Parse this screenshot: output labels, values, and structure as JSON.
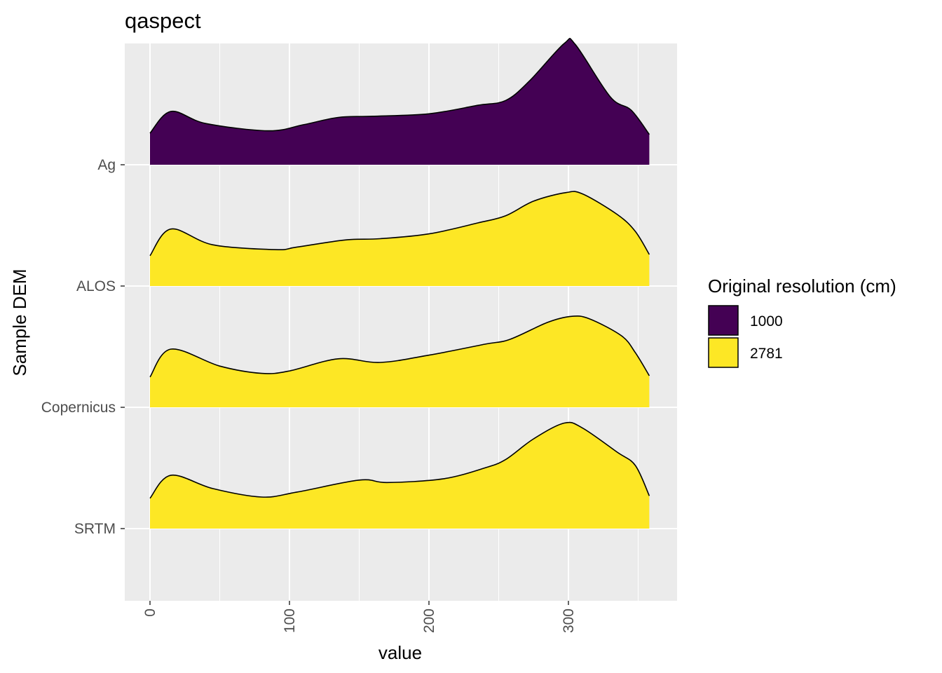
{
  "chart_data": {
    "type": "ridgeline density",
    "title": "qaspect",
    "xlabel": "value",
    "ylabel": "Sample DEM",
    "xlim": [
      -17,
      360
    ],
    "x_ticks": [
      0,
      100,
      200,
      300
    ],
    "x_tick_labels": [
      "0",
      "100",
      "200",
      "300"
    ],
    "x_tick_label_rotation": "vertical",
    "categories": [
      "Ag",
      "ALOS",
      "Copernicus",
      "SRTM"
    ],
    "legend": {
      "title": "Original resolution (cm)",
      "position": "right",
      "entries": [
        {
          "label": "1000",
          "color": "#440154"
        },
        {
          "label": "2781",
          "color": "#FDE725"
        }
      ]
    },
    "grid": true,
    "panel_background": "#EBEBEB",
    "series": [
      {
        "category": "Ag",
        "group": "1000",
        "color": "#440154",
        "x": [
          0,
          15,
          40,
          85,
          110,
          135,
          160,
          200,
          235,
          255,
          272,
          297,
          305,
          330,
          345,
          358
        ],
        "density": [
          0.26,
          0.44,
          0.34,
          0.28,
          0.33,
          0.39,
          0.4,
          0.42,
          0.49,
          0.53,
          0.69,
          1.0,
          0.99,
          0.56,
          0.45,
          0.25
        ]
      },
      {
        "category": "ALOS",
        "group": "2781",
        "color": "#FDE725",
        "x": [
          0,
          15,
          45,
          90,
          105,
          140,
          165,
          200,
          235,
          255,
          275,
          298,
          310,
          335,
          348,
          358
        ],
        "density": [
          0.25,
          0.47,
          0.34,
          0.3,
          0.32,
          0.38,
          0.39,
          0.43,
          0.52,
          0.58,
          0.7,
          0.77,
          0.76,
          0.59,
          0.45,
          0.26
        ]
      },
      {
        "category": "Copernicus",
        "group": "2781",
        "color": "#FDE725",
        "x": [
          0,
          15,
          50,
          80,
          100,
          135,
          165,
          200,
          240,
          258,
          285,
          302,
          315,
          338,
          348,
          358
        ],
        "density": [
          0.25,
          0.48,
          0.34,
          0.28,
          0.3,
          0.4,
          0.37,
          0.43,
          0.52,
          0.56,
          0.7,
          0.75,
          0.73,
          0.59,
          0.45,
          0.26
        ]
      },
      {
        "category": "SRTM",
        "group": "2781",
        "color": "#FDE725",
        "x": [
          0,
          15,
          45,
          80,
          105,
          150,
          170,
          210,
          240,
          255,
          275,
          297,
          310,
          335,
          348,
          358
        ],
        "density": [
          0.25,
          0.44,
          0.33,
          0.26,
          0.3,
          0.4,
          0.38,
          0.41,
          0.5,
          0.57,
          0.74,
          0.87,
          0.83,
          0.63,
          0.52,
          0.27
        ]
      }
    ]
  }
}
